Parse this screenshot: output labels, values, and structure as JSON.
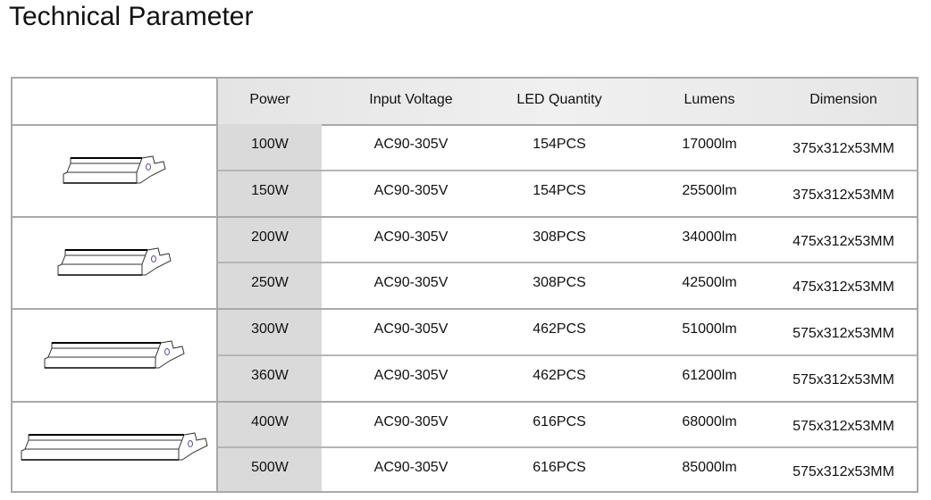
{
  "title": "Technical Parameter",
  "columns": [
    "Power",
    "Input Voltage",
    "LED Quantity",
    "Lumens",
    "Dimension"
  ],
  "groups": [
    {
      "image": "floodlight-small-icon",
      "rows": [
        [
          "100W",
          "AC90-305V",
          "154PCS",
          "17000lm",
          "375x312x53MM"
        ],
        [
          "150W",
          "AC90-305V",
          "154PCS",
          "25500lm",
          "375x312x53MM"
        ]
      ]
    },
    {
      "image": "floodlight-medium-icon",
      "rows": [
        [
          "200W",
          "AC90-305V",
          "308PCS",
          "34000lm",
          "475x312x53MM"
        ],
        [
          "250W",
          "AC90-305V",
          "308PCS",
          "42500lm",
          "475x312x53MM"
        ]
      ]
    },
    {
      "image": "floodlight-large-icon",
      "rows": [
        [
          "300W",
          "AC90-305V",
          "462PCS",
          "51000lm",
          "575x312x53MM"
        ],
        [
          "360W",
          "AC90-305V",
          "462PCS",
          "61200lm",
          "575x312x53MM"
        ]
      ]
    },
    {
      "image": "floodlight-xlarge-icon",
      "rows": [
        [
          "400W",
          "AC90-305V",
          "616PCS",
          "68000lm",
          "575x312x53MM"
        ],
        [
          "500W",
          "AC90-305V",
          "616PCS",
          "85000lm",
          "575x312x53MM"
        ]
      ]
    }
  ]
}
